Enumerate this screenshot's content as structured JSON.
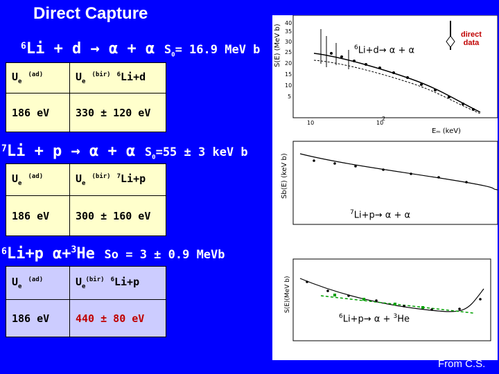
{
  "title": "Direct Capture",
  "section1": {
    "reaction_iso": "6",
    "reaction_main": "Li + d → α + α",
    "s0": "S0= 16.9 MeV b",
    "row1": {
      "c1": "Ue (ad)",
      "c2": "Ue (bir)  6Li+d"
    },
    "row2": {
      "c1": "186 eV",
      "c2": "330 ± 120 eV"
    }
  },
  "section2": {
    "reaction_iso": "7",
    "reaction_main": "Li + p → α + α",
    "s0": "S0=55 ± 3 keV b",
    "row1": {
      "c1": "Ue (ad)",
      "c2": "Ue (bir)  7Li+p"
    },
    "row2": {
      "c1": "186 eV",
      "c2": "300 ± 160 eV"
    }
  },
  "section3": {
    "reaction_iso": "6",
    "reaction_main": "Li+p  α+3He",
    "s0": "So = 3 ± 0.9 MeVb",
    "row1": {
      "c1": "Ue (ad)",
      "c2": "Ue(bir)  6Li+p"
    },
    "row2": {
      "c1": "186 eV",
      "c2": "440 ± 80 eV"
    }
  },
  "plots": {
    "plot1_label": "6Li+d→ α + α",
    "plot2_label": "7Li+p→ α + α",
    "plot3_label": "6Li+p→ α + 3He",
    "legend_direct": "direct data",
    "plot1_ylabel": "S(E) (MeV b)",
    "plot1_xlabel": "Ecm (keV)",
    "plot2_ylabel": "Sb(E) (keV b)"
  },
  "credit": "From C.S."
}
